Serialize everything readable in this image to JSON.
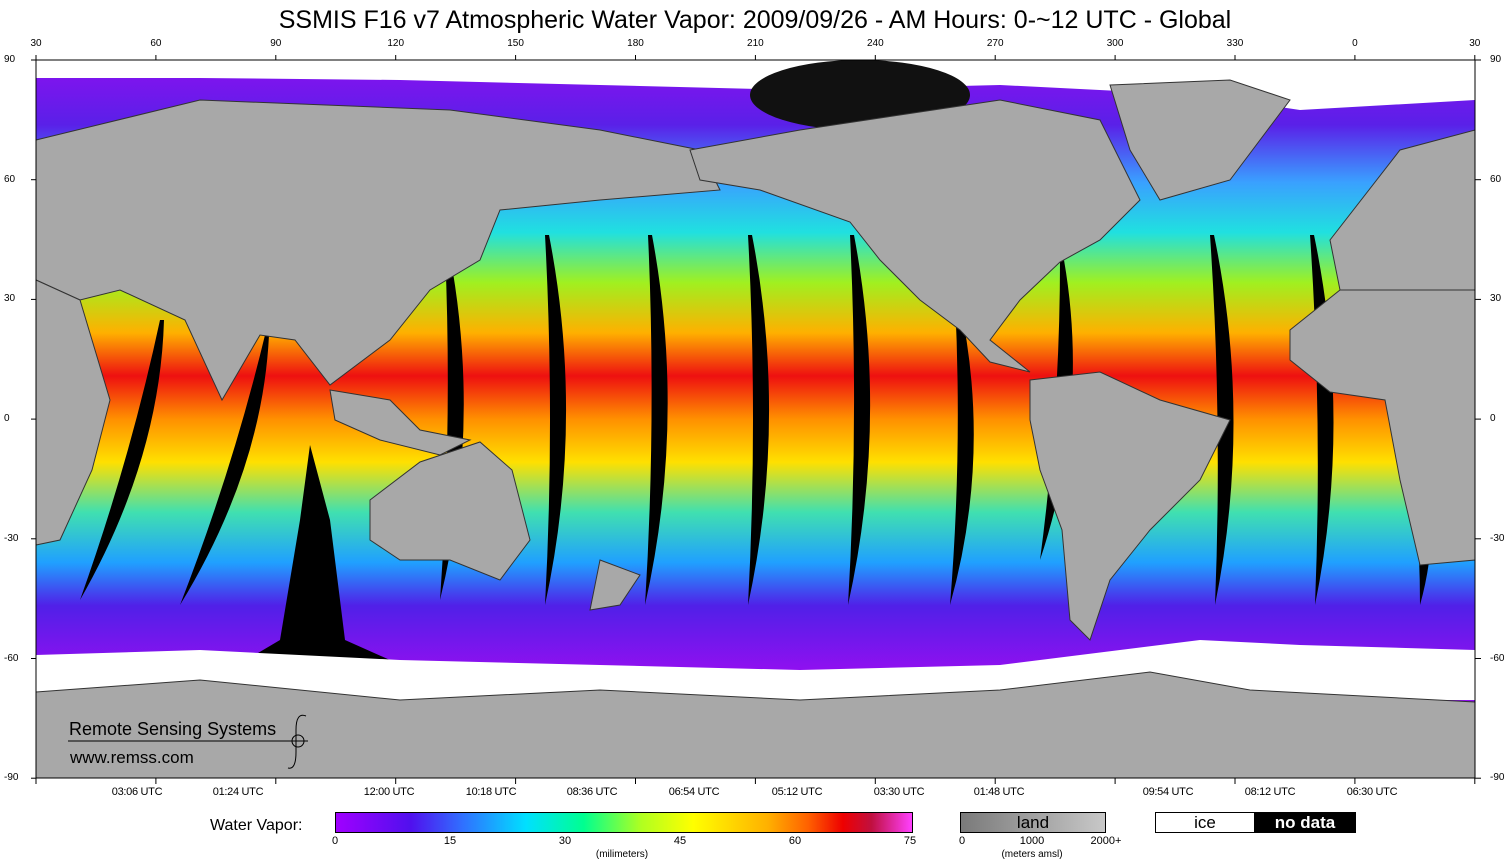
{
  "title": "SSMIS F16 v7 Atmospheric Water Vapor: 2009/09/26 - AM Hours: 0-~12 UTC - Global",
  "longitude_ticks": [
    "30",
    "60",
    "90",
    "120",
    "150",
    "180",
    "210",
    "240",
    "270",
    "300",
    "330",
    "0",
    "30"
  ],
  "latitude_ticks": [
    "90",
    "60",
    "30",
    "0",
    "-30",
    "-60",
    "-90"
  ],
  "swath_times": [
    "03:06 UTC",
    "01:24 UTC",
    "12:00 UTC",
    "10:18 UTC",
    "08:36 UTC",
    "06:54 UTC",
    "05:12 UTC",
    "03:30 UTC",
    "01:48 UTC",
    "09:54 UTC",
    "08:12 UTC",
    "06:30 UTC"
  ],
  "legend": {
    "label": "Water Vapor:",
    "ticks": [
      "0",
      "15",
      "30",
      "45",
      "60",
      "75"
    ],
    "units": "(milimeters)",
    "colors": [
      "#a000ff",
      "#5010ee",
      "#3070ff",
      "#00e0ff",
      "#00ff90",
      "#b0ff20",
      "#ffff00",
      "#ffb000",
      "#ff6000",
      "#ee0000",
      "#c01040",
      "#ff40ff"
    ],
    "land": {
      "label": "land",
      "ticks": [
        "0",
        "1000",
        "2000+"
      ],
      "units": "(meters amsl)"
    },
    "ice_label": "ice",
    "no_data_label": "no data"
  },
  "logo": {
    "name": "Remote Sensing Systems",
    "url": "www.remss.com"
  }
}
